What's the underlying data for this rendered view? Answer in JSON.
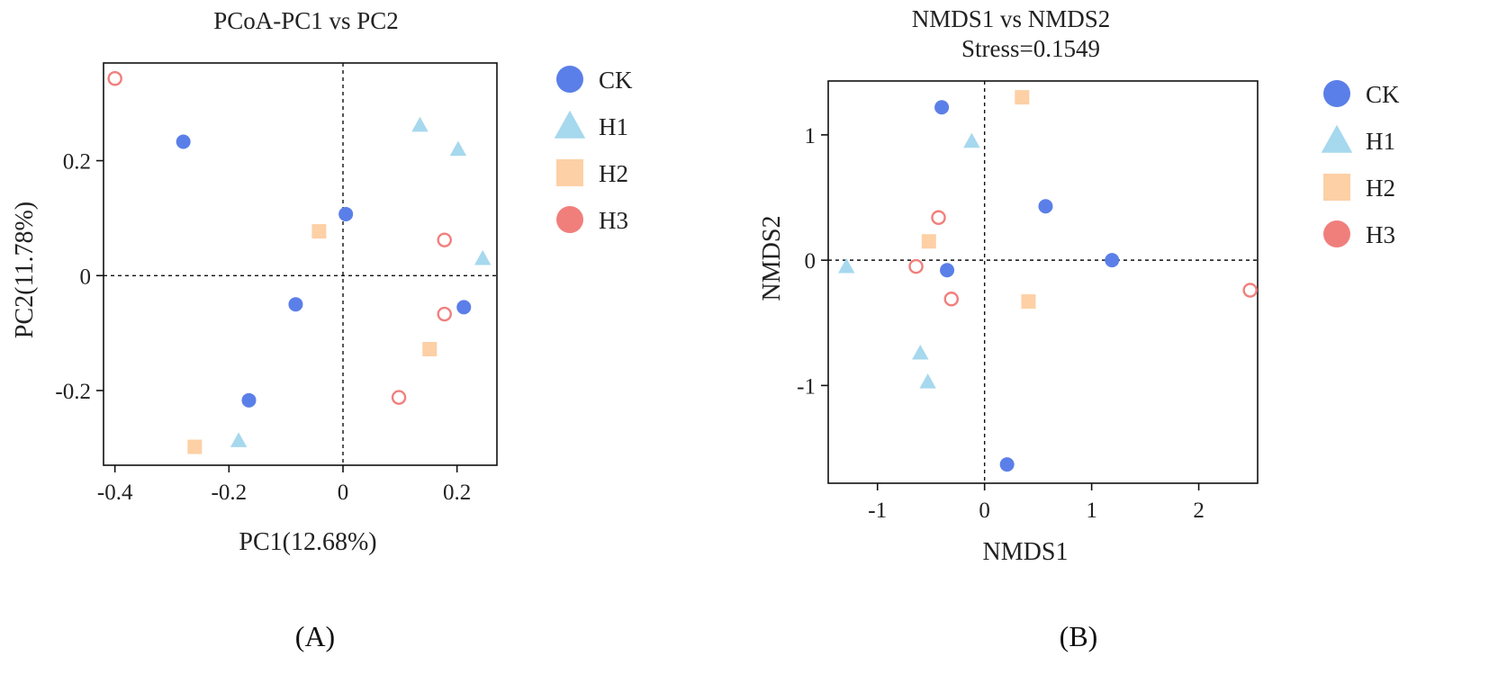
{
  "colors": {
    "CK": "#5b7fe8",
    "H1": "#a6d8ee",
    "H2": "#fdd0a5",
    "H3": "#f07f7c"
  },
  "chart_data": [
    {
      "type": "scatter",
      "panel_label": "(A)",
      "title": "PCoA-PC1 vs PC2",
      "subtitle": "",
      "xlabel": "PC1(12.68%)",
      "ylabel": "PC2(11.78%)",
      "xlim": [
        -0.42,
        0.27
      ],
      "ylim": [
        -0.33,
        0.37
      ],
      "xticks": [
        -0.4,
        -0.2,
        0,
        0.2
      ],
      "xtick_labels": [
        "-0.4",
        "-0.2",
        "0",
        "0.2"
      ],
      "yticks": [
        0.2,
        0,
        -0.2
      ],
      "ytick_labels": [
        "0.2",
        "0",
        "-0.2"
      ],
      "grid": false,
      "reference_lines": {
        "x": 0,
        "y": 0
      },
      "legend_position": "right",
      "series": [
        {
          "name": "CK",
          "marker": "filled-circle",
          "points": [
            [
              -0.28,
              0.233
            ],
            [
              0.005,
              0.107
            ],
            [
              -0.083,
              -0.05
            ],
            [
              0.212,
              -0.055
            ],
            [
              -0.165,
              -0.217
            ]
          ]
        },
        {
          "name": "H1",
          "marker": "triangle",
          "points": [
            [
              0.135,
              0.262
            ],
            [
              0.202,
              0.22
            ],
            [
              0.245,
              0.03
            ],
            [
              -0.183,
              -0.287
            ]
          ]
        },
        {
          "name": "H2",
          "marker": "square",
          "points": [
            [
              -0.042,
              0.077
            ],
            [
              0.152,
              -0.128
            ],
            [
              -0.26,
              -0.298
            ]
          ]
        },
        {
          "name": "H3",
          "marker": "open-circle",
          "points": [
            [
              -0.4,
              0.343
            ],
            [
              0.178,
              0.062
            ],
            [
              0.178,
              -0.067
            ],
            [
              0.098,
              -0.212
            ]
          ]
        }
      ]
    },
    {
      "type": "scatter",
      "panel_label": "(B)",
      "title": "NMDS1 vs NMDS2",
      "subtitle": "Stress=0.1549",
      "xlabel": "NMDS1",
      "ylabel": "NMDS2",
      "xlim": [
        -1.46,
        2.55
      ],
      "ylim": [
        -1.78,
        1.43
      ],
      "xticks": [
        -1,
        0,
        1,
        2
      ],
      "xtick_labels": [
        "-1",
        "0",
        "1",
        "2"
      ],
      "yticks": [
        1,
        0,
        -1
      ],
      "ytick_labels": [
        "1",
        "0",
        "-1"
      ],
      "grid": false,
      "reference_lines": {
        "x": 0,
        "y": 0
      },
      "legend_position": "right",
      "series": [
        {
          "name": "CK",
          "marker": "filled-circle",
          "points": [
            [
              -0.4,
              1.22
            ],
            [
              0.57,
              0.43
            ],
            [
              -0.35,
              -0.08
            ],
            [
              1.19,
              0.0
            ],
            [
              0.21,
              -1.63
            ]
          ]
        },
        {
          "name": "H1",
          "marker": "triangle",
          "points": [
            [
              -0.12,
              0.95
            ],
            [
              -1.29,
              -0.05
            ],
            [
              -0.6,
              -0.74
            ],
            [
              -0.53,
              -0.97
            ]
          ]
        },
        {
          "name": "H2",
          "marker": "square",
          "points": [
            [
              0.35,
              1.3
            ],
            [
              -0.52,
              0.15
            ],
            [
              0.41,
              -0.33
            ]
          ]
        },
        {
          "name": "H3",
          "marker": "open-circle",
          "points": [
            [
              -0.43,
              0.34
            ],
            [
              -0.64,
              -0.05
            ],
            [
              -0.31,
              -0.31
            ],
            [
              2.48,
              -0.24
            ]
          ]
        }
      ]
    }
  ]
}
